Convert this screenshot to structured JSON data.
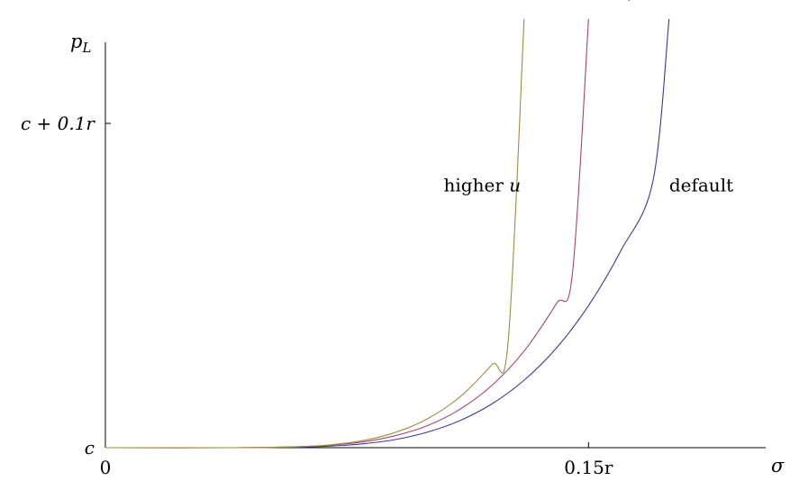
{
  "chart_data": {
    "type": "line",
    "title": "",
    "xlabel": "σ",
    "ylabel": "p_L",
    "x_ticks": [
      {
        "value": 0,
        "label": "0"
      },
      {
        "value": 0.15,
        "label": "0.15r"
      }
    ],
    "y_ticks": [
      {
        "value": 0,
        "label": "c"
      },
      {
        "value": 0.1,
        "label": "c + 0.1r"
      }
    ],
    "xlim": [
      0,
      0.205
    ],
    "ylim": [
      0,
      0.125
    ],
    "grid": false,
    "legend": "none (curves labeled directly)",
    "series": [
      {
        "name": "default",
        "color": "#3a3a9e",
        "label_text": "default",
        "label_anchor": {
          "x": 0.185,
          "y": 0.079
        },
        "x": [
          0,
          0.04,
          0.06,
          0.07,
          0.08,
          0.09,
          0.1,
          0.11,
          0.12,
          0.13,
          0.14,
          0.15,
          0.16,
          0.17,
          0.175
        ],
        "y": [
          0,
          0,
          0.0002,
          0.0005,
          0.0012,
          0.0025,
          0.0048,
          0.0083,
          0.0135,
          0.0208,
          0.0307,
          0.0438,
          0.0607,
          0.0822,
          0.1322
        ]
      },
      {
        "name": "lower μ",
        "color": "#a8446b",
        "label_text": "lower ",
        "label_symbol": "μ",
        "label_anchor": {
          "x": 0.155,
          "y": 0.139
        },
        "x": [
          0,
          0.04,
          0.06,
          0.07,
          0.08,
          0.09,
          0.1,
          0.11,
          0.12,
          0.13,
          0.14,
          0.145,
          0.15
        ],
        "y": [
          0,
          0,
          0.0003,
          0.0008,
          0.0018,
          0.0037,
          0.0068,
          0.0118,
          0.0192,
          0.0298,
          0.0444,
          0.0537,
          0.1322
        ]
      },
      {
        "name": "higher u",
        "color": "#9c8f3e",
        "label_text": "higher ",
        "label_symbol": "u",
        "label_anchor": {
          "x": 0.117,
          "y": 0.079
        },
        "x": [
          0,
          0.04,
          0.06,
          0.07,
          0.08,
          0.09,
          0.1,
          0.11,
          0.12,
          0.125,
          0.13
        ],
        "y": [
          0,
          0,
          0.0003,
          0.0009,
          0.0022,
          0.0047,
          0.0089,
          0.0156,
          0.0256,
          0.0322,
          0.1322
        ]
      }
    ]
  }
}
